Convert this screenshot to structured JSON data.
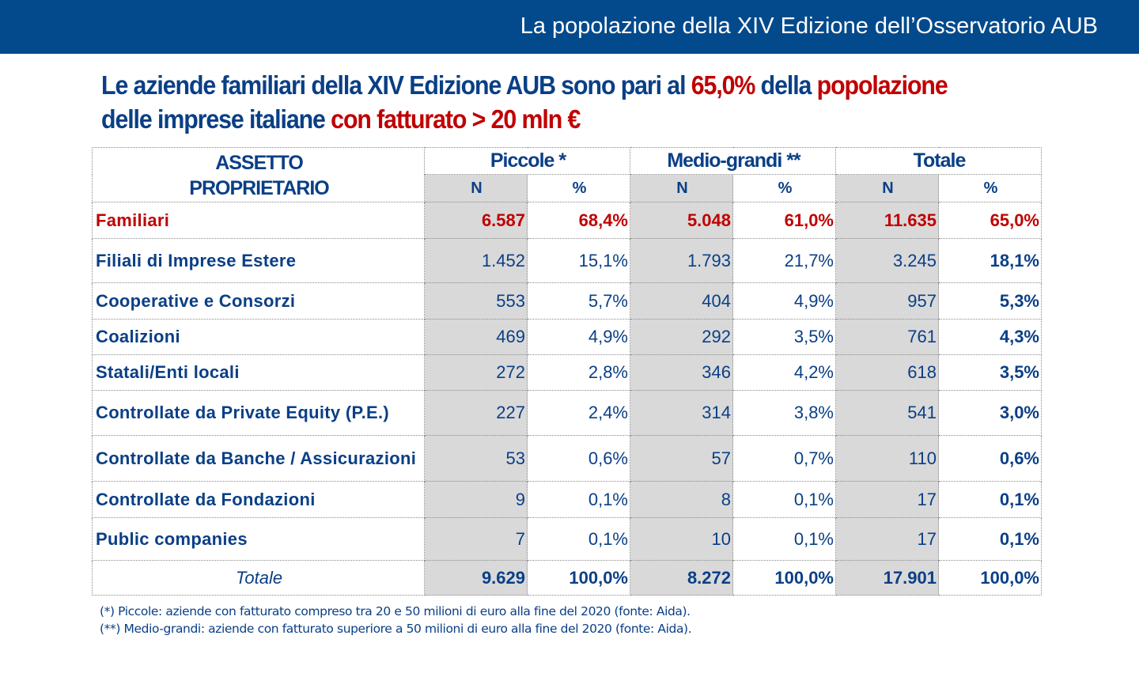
{
  "header": {
    "title": "La popolazione della XIV Edizione dell’Osservatorio AUB"
  },
  "headline": {
    "p1": "Le aziende familiari della XIV Edizione AUB sono pari al ",
    "p2": "65,0%",
    "p3": " della ",
    "p4": "popolazione",
    "p5": "delle imprese italiane ",
    "p6": "con fatturato > 20 mln €"
  },
  "colors": {
    "bar": "#024a8c",
    "text": "#0a3f86",
    "highlight": "#c00000",
    "shade": "#d9d9d9"
  },
  "table": {
    "col_label": "ASSETTO PROPRIETARIO",
    "groups": [
      "Piccole  *",
      "Medio-grandi **",
      "Totale"
    ],
    "sub": [
      "N",
      "%",
      "N",
      "%",
      "N",
      "%"
    ],
    "rows": [
      {
        "label": "Familiari",
        "cells": [
          "6.587",
          "68,4%",
          "5.048",
          "61,0%",
          "11.635",
          "65,0%"
        ]
      },
      {
        "label": "Filiali di Imprese Estere",
        "cells": [
          "1.452",
          "15,1%",
          "1.793",
          "21,7%",
          "3.245",
          "18,1%"
        ]
      },
      {
        "label": "Cooperative e Consorzi",
        "cells": [
          "553",
          "5,7%",
          "404",
          "4,9%",
          "957",
          "5,3%"
        ]
      },
      {
        "label": "Coalizioni",
        "cells": [
          "469",
          "4,9%",
          "292",
          "3,5%",
          "761",
          "4,3%"
        ]
      },
      {
        "label": "Statali/Enti locali",
        "cells": [
          "272",
          "2,8%",
          "346",
          "4,2%",
          "618",
          "3,5%"
        ]
      },
      {
        "label": "Controllate da Private Equity (P.E.)",
        "cells": [
          "227",
          "2,4%",
          "314",
          "3,8%",
          "541",
          "3,0%"
        ]
      },
      {
        "label": "Controllate da Banche / Assicurazioni",
        "cells": [
          "53",
          "0,6%",
          "57",
          "0,7%",
          "110",
          "0,6%"
        ]
      },
      {
        "label": "Controllate da Fondazioni",
        "cells": [
          "9",
          "0,1%",
          "8",
          "0,1%",
          "17",
          "0,1%"
        ]
      },
      {
        "label": "Public companies",
        "cells": [
          "7",
          "0,1%",
          "10",
          "0,1%",
          "17",
          "0,1%"
        ]
      }
    ],
    "total": {
      "label": "Totale",
      "cells": [
        "9.629",
        "100,0%",
        "8.272",
        "100,0%",
        "17.901",
        "100,0%"
      ]
    }
  },
  "notes": [
    "(*) Piccole: aziende con fatturato compreso tra 20 e 50 milioni di euro alla fine del 2020 (fonte: Aida).",
    "(**) Medio-grandi: aziende con fatturato superiore a 50 milioni di euro alla fine del 2020 (fonte: Aida)."
  ]
}
